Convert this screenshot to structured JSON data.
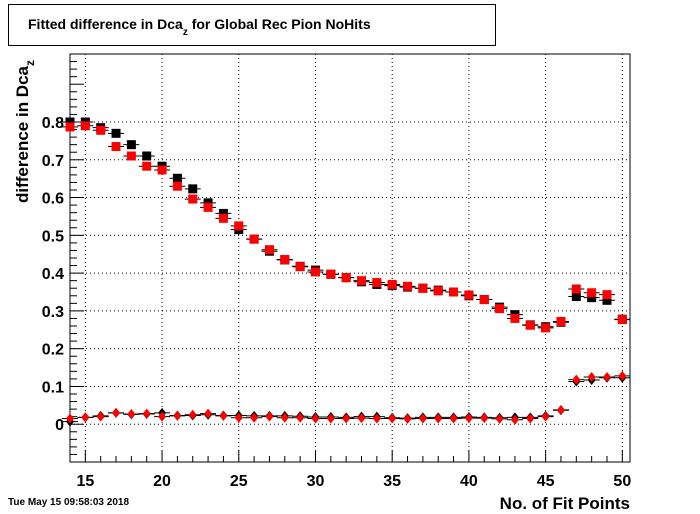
{
  "title": {
    "prefix": "Fitted difference in Dca",
    "subscript": "z",
    "suffix": " for Global Rec Pion NoHits"
  },
  "timestamp": "Tue May 15 09:58:03 2018",
  "chart_data": {
    "type": "scatter",
    "xlabel": "No. of Fit Points",
    "ylabel_main": "difference in Dca",
    "ylabel_sub": "z",
    "xlim": [
      14,
      50.5
    ],
    "ylim": [
      -0.1,
      0.98
    ],
    "xticks": [
      15,
      20,
      25,
      30,
      35,
      40,
      45,
      50
    ],
    "yticks": [
      0,
      0.1,
      0.2,
      0.3,
      0.4,
      0.5,
      0.6,
      0.7,
      0.8
    ],
    "grid": true,
    "x": [
      14,
      15,
      16,
      17,
      18,
      19,
      20,
      21,
      22,
      23,
      24,
      25,
      26,
      27,
      28,
      29,
      30,
      31,
      32,
      33,
      34,
      35,
      36,
      37,
      38,
      39,
      40,
      41,
      42,
      43,
      44,
      45,
      46,
      47,
      48,
      49,
      50
    ],
    "series": [
      {
        "marker": "square",
        "color": "#000000",
        "values": [
          0.8,
          0.8,
          0.785,
          0.77,
          0.74,
          0.71,
          0.683,
          0.651,
          0.623,
          0.586,
          0.558,
          0.515,
          0.49,
          0.458,
          0.435,
          0.418,
          0.408,
          0.397,
          0.388,
          0.377,
          0.37,
          0.367,
          0.363,
          0.36,
          0.355,
          0.35,
          0.34,
          0.33,
          0.31,
          0.29,
          0.263,
          0.258,
          0.27,
          0.338,
          0.335,
          0.328,
          0.278
        ]
      },
      {
        "marker": "square",
        "color": "#ff0000",
        "values": [
          0.787,
          0.79,
          0.778,
          0.735,
          0.71,
          0.683,
          0.673,
          0.63,
          0.596,
          0.574,
          0.545,
          0.525,
          0.49,
          0.462,
          0.436,
          0.417,
          0.403,
          0.397,
          0.388,
          0.38,
          0.375,
          0.37,
          0.365,
          0.36,
          0.353,
          0.35,
          0.342,
          0.33,
          0.306,
          0.28,
          0.262,
          0.255,
          0.272,
          0.358,
          0.348,
          0.343,
          0.277
        ]
      },
      {
        "marker": "diamond",
        "color": "#000000",
        "values": [
          0.007,
          0.018,
          0.022,
          0.03,
          0.026,
          0.027,
          0.03,
          0.023,
          0.023,
          0.025,
          0.023,
          0.023,
          0.022,
          0.022,
          0.022,
          0.021,
          0.019,
          0.019,
          0.018,
          0.02,
          0.02,
          0.017,
          0.016,
          0.018,
          0.018,
          0.018,
          0.019,
          0.018,
          0.017,
          0.018,
          0.018,
          0.022,
          0.037,
          0.113,
          0.117,
          0.123,
          0.123
        ]
      },
      {
        "marker": "diamond",
        "color": "#ff0000",
        "values": [
          0.015,
          0.018,
          0.02,
          0.03,
          0.027,
          0.028,
          0.02,
          0.022,
          0.025,
          0.028,
          0.022,
          0.017,
          0.017,
          0.02,
          0.017,
          0.017,
          0.015,
          0.015,
          0.015,
          0.016,
          0.015,
          0.015,
          0.014,
          0.015,
          0.015,
          0.015,
          0.016,
          0.016,
          0.014,
          0.012,
          0.015,
          0.02,
          0.038,
          0.118,
          0.125,
          0.125,
          0.128
        ]
      }
    ]
  }
}
